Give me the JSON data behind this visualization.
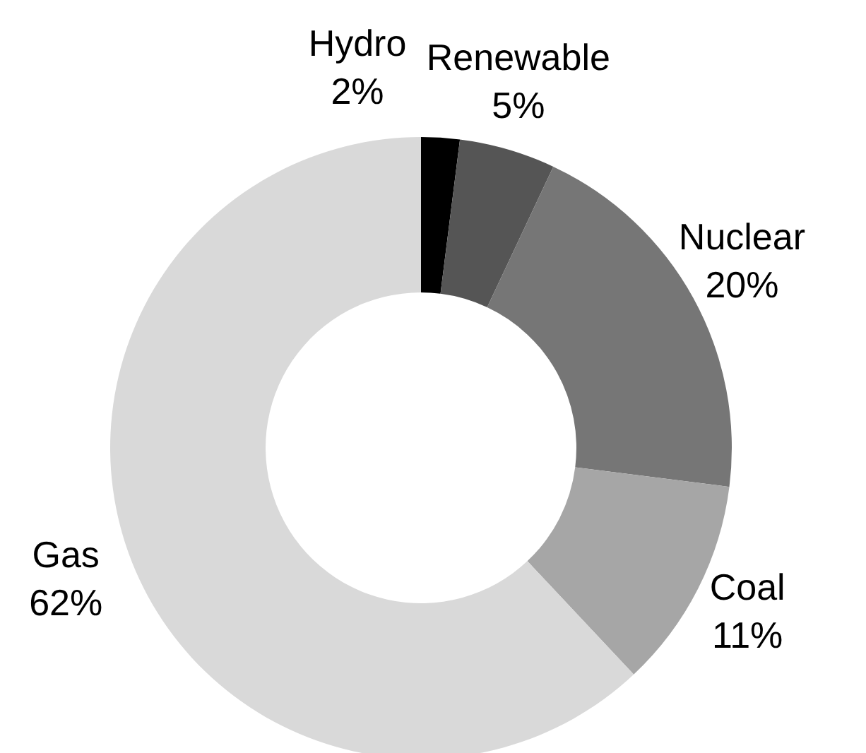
{
  "chart_data": {
    "type": "donut",
    "categories": [
      "Hydro",
      "Renewable",
      "Nuclear",
      "Coal",
      "Gas"
    ],
    "values": [
      2,
      5,
      20,
      11,
      62
    ],
    "value_labels": [
      "2%",
      "5%",
      "20%",
      "11%",
      "62%"
    ],
    "colors": [
      "#000000",
      "#555555",
      "#767676",
      "#a6a6a6",
      "#d9d9d9"
    ],
    "legend": false
  }
}
